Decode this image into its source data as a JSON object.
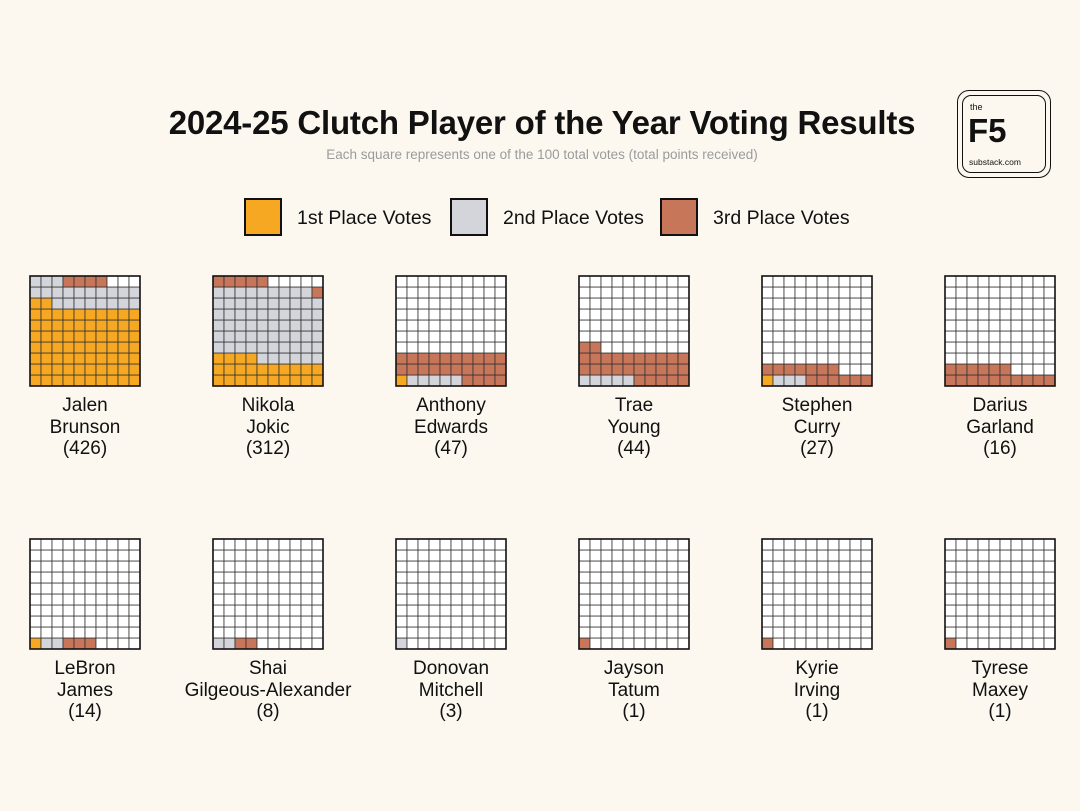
{
  "title": "2024-25 Clutch Player of the Year Voting Results",
  "subtitle": "Each square represents one of the 100 total votes (total points received)",
  "logo": {
    "the": "the",
    "brand": "F5",
    "url": "substack.com"
  },
  "colors": {
    "first": "#f7a823",
    "second": "#d3d5da",
    "third": "#c7765a",
    "empty": "#ffffff",
    "gridline": "#333333",
    "background": "#fcf8f0"
  },
  "legend": [
    {
      "key": "first",
      "label": "1st Place Votes"
    },
    {
      "key": "second",
      "label": "2nd Place Votes"
    },
    {
      "key": "third",
      "label": "3rd Place Votes"
    }
  ],
  "chart_data": {
    "type": "waffle",
    "title": "2024-25 Clutch Player of the Year Voting Results",
    "subtitle": "Each square represents one of the 100 total votes (total points received)",
    "grid": {
      "columns": 10,
      "rows": 10,
      "total_votes": 100
    },
    "fill_order": "votes fill from bottom-left: 1st place, then 2nd place, then 3rd place",
    "players": [
      {
        "first": "Jalen",
        "last": "Brunson",
        "points_label": "(426)",
        "points": 426,
        "votes": {
          "first": 72,
          "second": 21,
          "third": 4
        }
      },
      {
        "first": "Nikola",
        "last": "Jokic",
        "points_label": "(312)",
        "points": 312,
        "votes": {
          "first": 24,
          "second": 65,
          "third": 6
        }
      },
      {
        "first": "Anthony",
        "last": "Edwards",
        "points_label": "(47)",
        "points": 47,
        "votes": {
          "first": 1,
          "second": 5,
          "third": 24
        }
      },
      {
        "first": "Trae",
        "last": "Young",
        "points_label": "(44)",
        "points": 44,
        "votes": {
          "first": 0,
          "second": 5,
          "third": 27
        }
      },
      {
        "first": "Stephen",
        "last": "Curry",
        "points_label": "(27)",
        "points": 27,
        "votes": {
          "first": 1,
          "second": 3,
          "third": 13
        }
      },
      {
        "first": "Darius",
        "last": "Garland",
        "points_label": "(16)",
        "points": 16,
        "votes": {
          "first": 0,
          "second": 0,
          "third": 16
        }
      },
      {
        "first": "LeBron",
        "last": "James",
        "points_label": "(14)",
        "points": 14,
        "votes": {
          "first": 1,
          "second": 2,
          "third": 3
        }
      },
      {
        "first": "Shai",
        "last": "Gilgeous-Alexander",
        "points_label": "(8)",
        "points": 8,
        "votes": {
          "first": 0,
          "second": 2,
          "third": 2
        }
      },
      {
        "first": "Donovan",
        "last": "Mitchell",
        "points_label": "(3)",
        "points": 3,
        "votes": {
          "first": 0,
          "second": 1,
          "third": 0
        }
      },
      {
        "first": "Jayson",
        "last": "Tatum",
        "points_label": "(1)",
        "points": 1,
        "votes": {
          "first": 0,
          "second": 0,
          "third": 1
        }
      },
      {
        "first": "Kyrie",
        "last": "Irving",
        "points_label": "(1)",
        "points": 1,
        "votes": {
          "first": 0,
          "second": 0,
          "third": 1
        }
      },
      {
        "first": "Tyrese",
        "last": "Maxey",
        "points_label": "(1)",
        "points": 1,
        "votes": {
          "first": 0,
          "second": 0,
          "third": 1
        }
      }
    ]
  }
}
